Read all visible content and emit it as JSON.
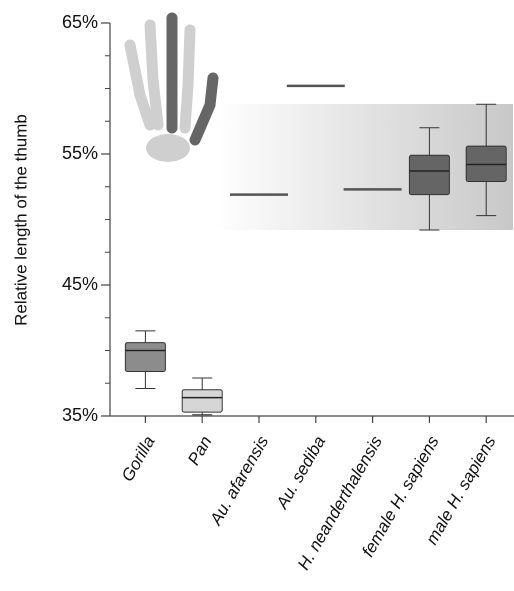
{
  "chart_data": {
    "type": "box",
    "y_label": "Relative length of the thumb",
    "categories": [
      "Gorilla",
      "Pan",
      "Au. afarensis",
      "Au. sediba",
      "H. neanderthalensis",
      "female H. sapiens",
      "male H. sapiens"
    ],
    "boxes": [
      {
        "min": 37.1,
        "q1": 38.4,
        "median": 40.0,
        "q3": 40.6,
        "max": 41.5,
        "color": "#8c8c8c"
      },
      {
        "min": 35.1,
        "q1": 35.3,
        "median": 36.4,
        "q3": 37.0,
        "max": 37.9,
        "color": "#d6d6d6"
      },
      {
        "value": 51.9
      },
      {
        "value": 60.2
      },
      {
        "value": 52.3
      },
      {
        "min": 49.2,
        "q1": 51.9,
        "median": 53.7,
        "q3": 54.9,
        "max": 57.0,
        "color": "#656565"
      },
      {
        "min": 50.3,
        "q1": 52.9,
        "median": 54.2,
        "q3": 55.6,
        "max": 58.8,
        "color": "#656565"
      }
    ],
    "ylim": [
      35,
      65
    ],
    "yticks": [
      {
        "value": 35,
        "label": "35%"
      },
      {
        "value": 45,
        "label": "45%"
      },
      {
        "value": 55,
        "label": "55%"
      },
      {
        "value": 65,
        "label": "65%"
      }
    ],
    "yminorticks": [
      37.5,
      40,
      42.5,
      47.5,
      50,
      52.5,
      57.5,
      60,
      62.5
    ]
  }
}
